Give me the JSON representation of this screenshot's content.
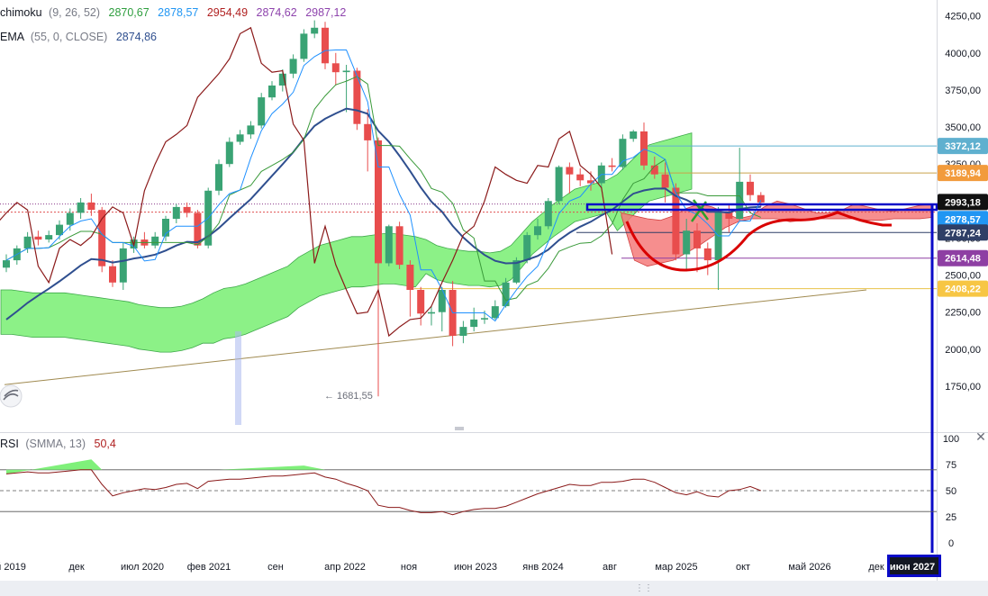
{
  "indicators": {
    "ichimoku": {
      "name": "chimoku",
      "params": "(9, 26, 52)",
      "values": [
        {
          "text": "2870,67",
          "color": "#2e9e3e"
        },
        {
          "text": "2878,57",
          "color": "#2196f3"
        },
        {
          "text": "2954,49",
          "color": "#b02020"
        },
        {
          "text": "2874,62",
          "color": "#8e44ad"
        },
        {
          "text": "2987,12",
          "color": "#8e44ad"
        }
      ]
    },
    "ema": {
      "name": "EMA",
      "params": "(55, 0, CLOSE)",
      "value": "2874,86",
      "color": "#2f4f8f"
    },
    "rsi": {
      "name": "RSI",
      "params": "(SMMA, 13)",
      "value": "50,4",
      "color": "#b02020"
    }
  },
  "colors": {
    "bull": "#3aa374",
    "bear": "#e84d4d",
    "cloud": "#7ff07a",
    "tenkan": "#8b1a1a",
    "kijun": "#3a9a3a",
    "chikou": "#2196f3",
    "ema": "#2f4f8f",
    "forecast": "#d90000",
    "highlight": "#0a0ac8"
  },
  "chart_data": [
    {
      "type": "candlestick",
      "title": "",
      "timeframe": "monthly",
      "ylim": [
        1600,
        4300
      ],
      "y_ticks": [
        "4250,00",
        "4000,00",
        "3750,00",
        "3500,00",
        "3250,00",
        "3000,00",
        "2750,00",
        "2500,00",
        "2250,00",
        "2000,00",
        "1750,00"
      ],
      "x_ticks": [
        "й 2019",
        "дек",
        "июл 2020",
        "фев 2021",
        "сен",
        "апр 2022",
        "ноя",
        "июн 2023",
        "янв 2024",
        "авг",
        "мар 2025",
        "окт",
        "май 2026",
        "дек",
        "июн 2027"
      ],
      "highlighted_x_tick": "июн 2027",
      "price_labels": [
        {
          "text": "3372,12",
          "value": 3372.12,
          "bg": "#5fb0cf",
          "fg": "#ffffff"
        },
        {
          "text": "3189,94",
          "value": 3189.94,
          "bg": "#f29b3c",
          "fg": "#ffffff"
        },
        {
          "text": "2993,18",
          "value": 2993.18,
          "bg": "#111111",
          "fg": "#ffffff"
        },
        {
          "text": "2878,57",
          "value": 2878.57,
          "bg": "#2196f3",
          "fg": "#ffffff"
        },
        {
          "text": "2787,24",
          "value": 2787.24,
          "bg": "#2f3f66",
          "fg": "#ffffff"
        },
        {
          "text": "2614,48",
          "value": 2614.48,
          "bg": "#8e3fa3",
          "fg": "#ffffff"
        },
        {
          "text": "2408,22",
          "value": 2408.22,
          "bg": "#f7c644",
          "fg": "#ffffff"
        }
      ],
      "annotations": [
        {
          "text": "← 1681,55",
          "value": 1681.55
        }
      ],
      "candles": [
        [
          2550,
          2600,
          2520,
          2640
        ],
        [
          2600,
          2680,
          2570,
          2700
        ],
        [
          2680,
          2760,
          2650,
          2790
        ],
        [
          2760,
          2740,
          2700,
          2800
        ],
        [
          2740,
          2770,
          2720,
          2800
        ],
        [
          2770,
          2840,
          2740,
          2870
        ],
        [
          2840,
          2920,
          2800,
          2950
        ],
        [
          2920,
          2990,
          2880,
          3020
        ],
        [
          2990,
          2940,
          2900,
          3050
        ],
        [
          2940,
          2560,
          2520,
          2960
        ],
        [
          2560,
          2450,
          2420,
          2600
        ],
        [
          2450,
          2680,
          2400,
          2720
        ],
        [
          2680,
          2740,
          2650,
          2760
        ],
        [
          2740,
          2700,
          2680,
          2790
        ],
        [
          2700,
          2760,
          2680,
          2790
        ],
        [
          2760,
          2880,
          2730,
          2900
        ],
        [
          2880,
          2960,
          2850,
          2980
        ],
        [
          2960,
          2920,
          2890,
          2990
        ],
        [
          2920,
          2700,
          2680,
          2940
        ],
        [
          2700,
          3070,
          2680,
          3090
        ],
        [
          3070,
          3250,
          3040,
          3280
        ],
        [
          3250,
          3400,
          3230,
          3430
        ],
        [
          3400,
          3450,
          3380,
          3480
        ],
        [
          3450,
          3510,
          3420,
          3540
        ],
        [
          3510,
          3700,
          3490,
          3730
        ],
        [
          3700,
          3780,
          3680,
          3810
        ],
        [
          3780,
          3860,
          3740,
          3890
        ],
        [
          3860,
          3960,
          3830,
          3990
        ],
        [
          3960,
          4130,
          3940,
          4160
        ],
        [
          4130,
          4170,
          4100,
          4220
        ],
        [
          4170,
          3930,
          3890,
          4210
        ],
        [
          3930,
          3870,
          3780,
          4000
        ],
        [
          3870,
          3880,
          3600,
          3920
        ],
        [
          3880,
          3520,
          3480,
          3900
        ],
        [
          3520,
          3410,
          3200,
          3620
        ],
        [
          3410,
          2580,
          1681.55,
          3430
        ],
        [
          2580,
          2830,
          2560,
          2840
        ],
        [
          2830,
          2570,
          2540,
          2860
        ],
        [
          2570,
          2400,
          2220,
          2600
        ],
        [
          2400,
          2240,
          2160,
          2420
        ],
        [
          2240,
          2250,
          2160,
          2290
        ],
        [
          2250,
          2400,
          2120,
          2420
        ],
        [
          2400,
          2090,
          2020,
          2460
        ],
        [
          2090,
          2150,
          2040,
          2190
        ],
        [
          2150,
          2200,
          2120,
          2280
        ],
        [
          2200,
          2210,
          2170,
          2260
        ],
        [
          2210,
          2290,
          2200,
          2330
        ],
        [
          2290,
          2450,
          2280,
          2480
        ],
        [
          2450,
          2600,
          2440,
          2620
        ],
        [
          2600,
          2770,
          2580,
          2790
        ],
        [
          2770,
          2830,
          2740,
          2880
        ],
        [
          2830,
          3000,
          2810,
          3020
        ],
        [
          3000,
          3230,
          2980,
          3240
        ],
        [
          3230,
          3180,
          3050,
          3260
        ],
        [
          3180,
          3140,
          3100,
          3220
        ],
        [
          3140,
          3120,
          3070,
          3200
        ],
        [
          3120,
          3240,
          3090,
          3260
        ],
        [
          3240,
          3230,
          3200,
          3290
        ],
        [
          3230,
          3420,
          3210,
          3450
        ],
        [
          3420,
          3470,
          3400,
          3480
        ],
        [
          3470,
          3240,
          3210,
          3530
        ],
        [
          3240,
          3180,
          3150,
          3300
        ],
        [
          3180,
          3090,
          2990,
          3260
        ],
        [
          3090,
          2640,
          2600,
          3120
        ],
        [
          2640,
          2800,
          2540,
          2880
        ],
        [
          2800,
          2680,
          2520,
          2850
        ],
        [
          2680,
          2600,
          2500,
          2720
        ],
        [
          2600,
          2930,
          2400,
          2960
        ],
        [
          2930,
          2880,
          2790,
          2980
        ],
        [
          2880,
          3130,
          2870,
          3360
        ],
        [
          3130,
          3040,
          3000,
          3180
        ],
        [
          3040,
          2990,
          2960,
          3060
        ]
      ]
    },
    {
      "type": "line",
      "title": "",
      "series": [
        {
          "name": "RSI",
          "values": [
            66,
            67,
            68,
            67,
            67,
            68,
            69,
            70,
            70,
            56,
            45,
            48,
            50,
            52,
            51,
            53,
            56,
            57,
            52,
            59,
            60,
            61,
            61,
            62,
            63,
            64,
            64,
            65,
            66,
            67,
            63,
            61,
            57,
            54,
            50,
            36,
            34,
            34,
            31,
            29,
            29,
            30,
            27,
            30,
            32,
            33,
            33,
            35,
            39,
            43,
            47,
            50,
            53,
            56,
            55,
            55,
            58,
            58,
            59,
            61,
            61,
            58,
            53,
            48,
            46,
            49,
            45,
            44,
            50,
            51,
            54,
            50
          ]
        }
      ],
      "ylim": [
        0,
        100
      ],
      "y_ticks": [
        "100",
        "75",
        "50",
        "25",
        "0"
      ],
      "levels": [
        70,
        50,
        30
      ]
    }
  ]
}
